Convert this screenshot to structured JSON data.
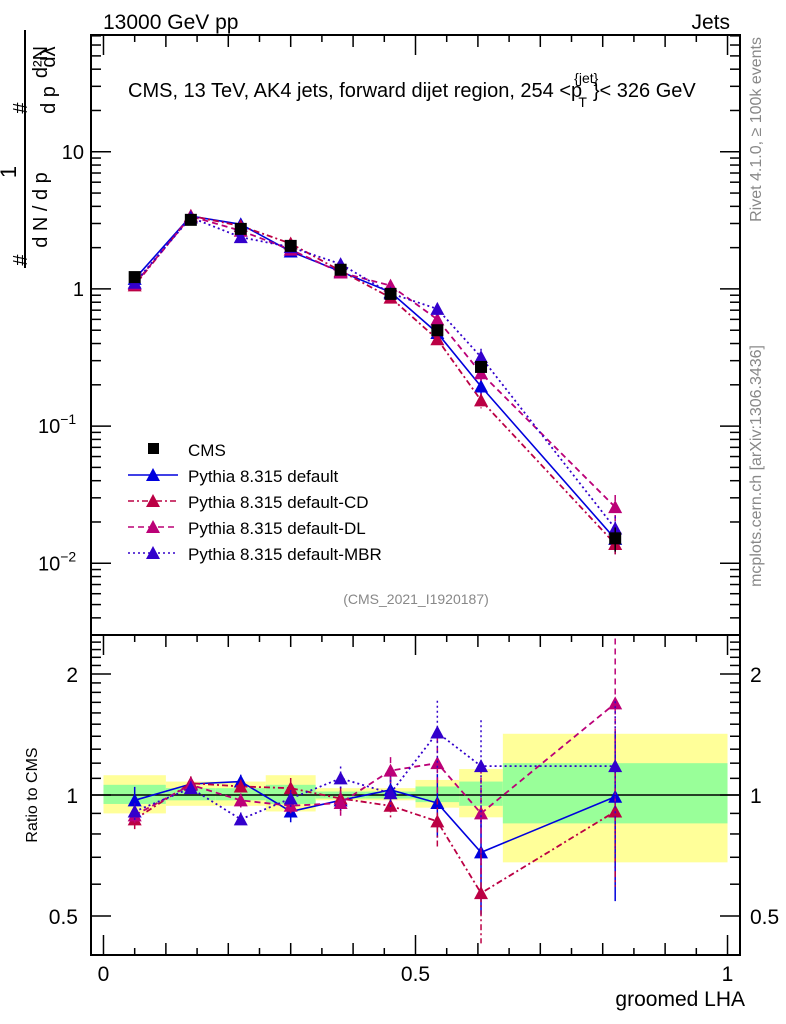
{
  "header": {
    "left": "13000 GeV pp",
    "right": "Jets"
  },
  "side_labels": {
    "rivet": "Rivet 4.1.0, ≥ 100k events",
    "mcplots": "mcplots.cern.ch [arXiv:1306.3436]"
  },
  "chart_data": [
    {
      "type": "line",
      "panel": "main",
      "title": "CMS, 13 TeV, AK4 jets, forward dijet region, 254 <p_T^{jet}> < 326 GeV",
      "title_parts": {
        "pre": "CMS, 13 TeV, AK4 jets, forward dijet region, 254 <p",
        "sup": "{jet}",
        "sub": "T",
        "post": "}< 326 GeV"
      },
      "ylabel": "1/dN/dp_T dN^2/dp_T dλ",
      "ylabel_parts": {
        "num_top": "d²N",
        "num_bottom": "d p",
        "num_sub": "T",
        "num_tail": "dλ",
        "one": "1",
        "den": "d N / d p",
        "den_sub": "T",
        "hash": "#"
      },
      "xlabel": "groomed LHA",
      "yscale": "log",
      "ylim": [
        0.003,
        71
      ],
      "xlim": [
        -0.02,
        1.02
      ],
      "y_ticks": [
        {
          "value": 0.01,
          "base": "10",
          "exp": "−2"
        },
        {
          "value": 0.1,
          "base": "10",
          "exp": "−1"
        },
        {
          "value": 1,
          "base": "1",
          "exp": ""
        },
        {
          "value": 10,
          "base": "10",
          "exp": ""
        }
      ],
      "watermark": "(CMS_2021_I1920187)",
      "bins": [
        [
          0,
          0.1
        ],
        [
          0.1,
          0.18
        ],
        [
          0.18,
          0.26
        ],
        [
          0.26,
          0.34
        ],
        [
          0.34,
          0.42
        ],
        [
          0.42,
          0.5
        ],
        [
          0.5,
          0.57
        ],
        [
          0.57,
          0.64
        ],
        [
          0.64,
          1.0
        ]
      ],
      "x": [
        0.05,
        0.14,
        0.22,
        0.3,
        0.38,
        0.46,
        0.535,
        0.605,
        0.82
      ],
      "legend_position": "bottom-left",
      "series": [
        {
          "name": "CMS",
          "style": "data",
          "color": "#000000",
          "values": [
            1.22,
            3.19,
            2.74,
            2.06,
            1.38,
            0.92,
            0.5,
            0.27,
            0.0152
          ],
          "err_rel": [
            0.06,
            0.04,
            0.04,
            0.06,
            0.02,
            0.02,
            0.05,
            0.08,
            0.2
          ]
        },
        {
          "name": "Pythia 8.315 default",
          "style": "solid",
          "color": "#0000dd",
          "ratio": [
            0.97,
            1.065,
            1.08,
            0.91,
            0.97,
            1.03,
            0.955,
            0.72,
            0.99
          ],
          "ratio_err": [
            0.08,
            0.04,
            0.04,
            0.06,
            0.06,
            0.08,
            0.18,
            0.3,
            0.45
          ]
        },
        {
          "name": "Pythia 8.315 default-CD",
          "style": "dashdot",
          "color": "#bb0044",
          "ratio": [
            0.87,
            1.07,
            1.05,
            1.04,
            0.98,
            0.94,
            0.86,
            0.57,
            0.91
          ],
          "ratio_err": [
            0.06,
            0.04,
            0.04,
            0.06,
            0.07,
            0.08,
            0.14,
            0.25,
            0.35
          ]
        },
        {
          "name": "Pythia 8.315 default-DL",
          "style": "dashed",
          "color": "#bb0077",
          "ratio": [
            0.89,
            1.06,
            0.97,
            0.94,
            0.955,
            1.15,
            1.2,
            0.9,
            1.69
          ],
          "ratio_err": [
            0.05,
            0.04,
            0.04,
            0.05,
            0.07,
            0.08,
            0.16,
            0.3,
            0.45
          ]
        },
        {
          "name": "Pythia 8.315 default-MBR",
          "style": "dotted",
          "color": "#3300cc",
          "ratio": [
            0.91,
            1.04,
            0.87,
            0.98,
            1.1,
            1.01,
            1.43,
            1.18,
            1.18
          ],
          "ratio_err": [
            0.05,
            0.04,
            0.04,
            0.05,
            0.07,
            0.08,
            0.2,
            0.3,
            0.45
          ]
        }
      ]
    },
    {
      "type": "line",
      "panel": "ratio",
      "ylabel": "Ratio to CMS",
      "xlabel": "groomed LHA",
      "yscale": "log",
      "ylim": [
        0.4,
        2.5
      ],
      "xlim": [
        -0.02,
        1.02
      ],
      "y_ticks": [
        0.5,
        1,
        2
      ],
      "y_tick_labels": [
        "0.5",
        "1",
        "2"
      ],
      "x_ticks": [
        0,
        0.5,
        1
      ],
      "x_tick_labels": [
        "0",
        "0.5",
        "1"
      ],
      "band_yellow": [
        [
          0.9,
          1.12
        ],
        [
          0.94,
          1.08
        ],
        [
          0.94,
          1.08
        ],
        [
          0.91,
          1.12
        ],
        [
          0.97,
          1.04
        ],
        [
          0.97,
          1.04
        ],
        [
          0.93,
          1.09
        ],
        [
          0.88,
          1.16
        ],
        [
          0.68,
          1.42
        ]
      ],
      "band_green": [
        [
          0.95,
          1.06
        ],
        [
          0.97,
          1.04
        ],
        [
          0.97,
          1.04
        ],
        [
          0.95,
          1.06
        ],
        [
          0.98,
          1.02
        ],
        [
          0.98,
          1.02
        ],
        [
          0.96,
          1.05
        ],
        [
          0.94,
          1.08
        ],
        [
          0.85,
          1.2
        ]
      ],
      "band_colors": {
        "yellow": "#ffff99",
        "green": "#99ff99"
      }
    }
  ]
}
